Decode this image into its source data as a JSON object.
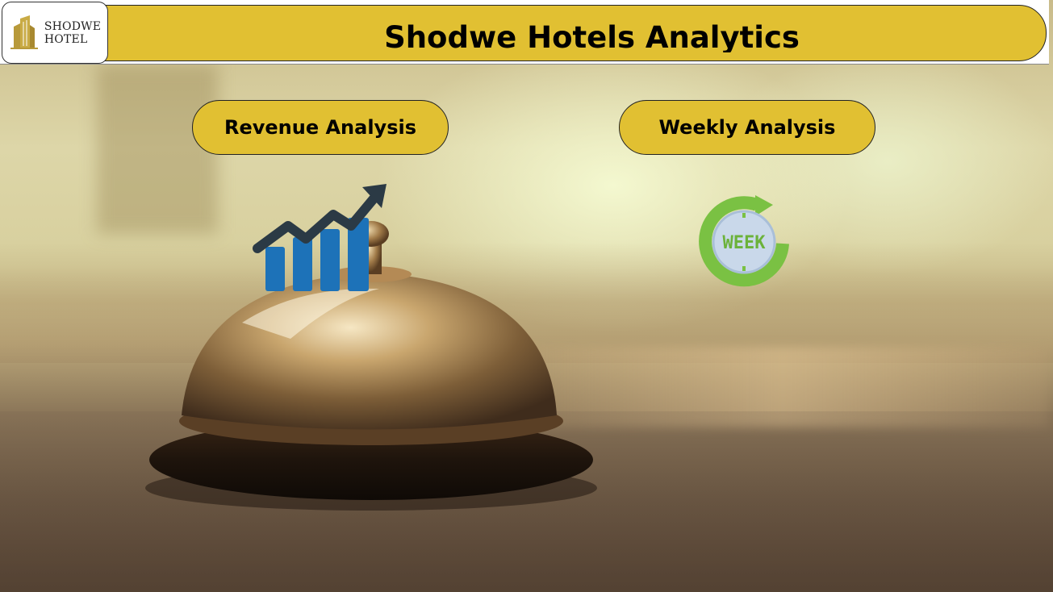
{
  "app": {
    "logo_line1": "SHODWE",
    "logo_line2": "HOTEL",
    "title": "Shodwe Hotels Analytics"
  },
  "nav": {
    "revenue_label": "Revenue Analysis",
    "weekly_label": "Weekly Analysis",
    "week_icon_text": "WEEK"
  },
  "icons": {
    "logo": "hotel-building-icon",
    "revenue": "rising-bar-chart-icon",
    "weekly": "week-cycle-icon"
  },
  "colors": {
    "accent": "#e1c032",
    "chart_blue": "#1d72b8",
    "chart_arrow": "#2b3a45",
    "week_green": "#7ac143",
    "week_face": "#c9d8ea"
  }
}
